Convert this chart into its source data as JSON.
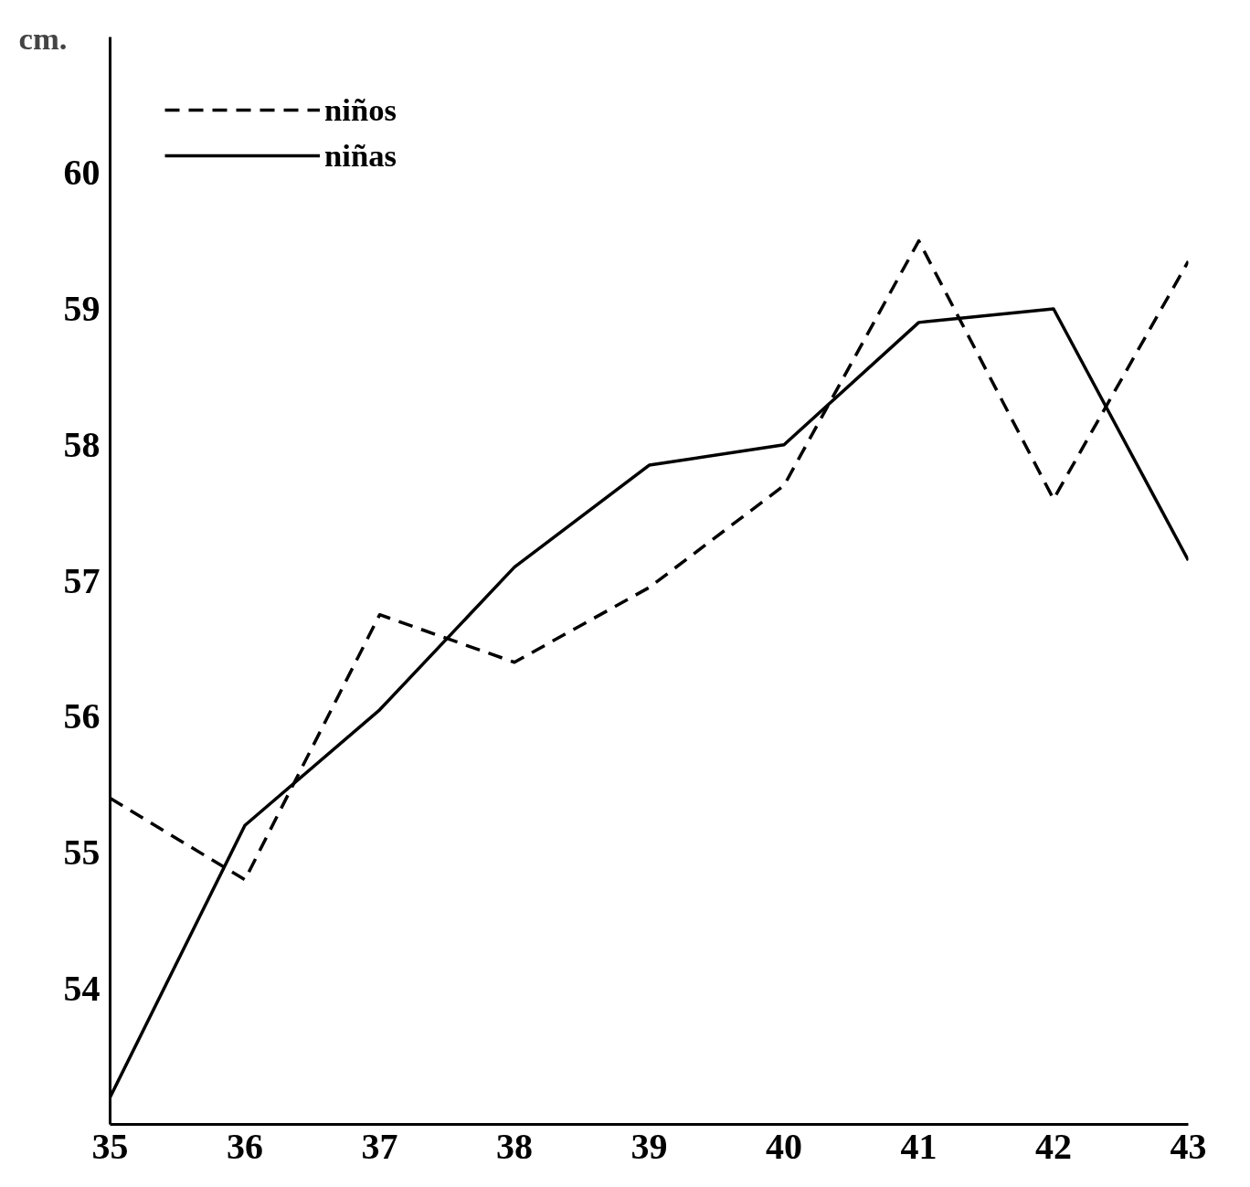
{
  "chart_data": {
    "type": "line",
    "ylabel": "cm.",
    "x": [
      35,
      36,
      37,
      38,
      39,
      40,
      41,
      42,
      43
    ],
    "series": [
      {
        "name": "niños",
        "color": "#000000",
        "line_style": "dashed",
        "values": [
          55.4,
          54.8,
          56.75,
          56.4,
          56.95,
          57.7,
          59.5,
          57.6,
          59.35
        ]
      },
      {
        "name": "niñas",
        "color": "#000000",
        "line_style": "solid",
        "values": [
          53.2,
          55.2,
          56.05,
          57.1,
          57.85,
          58.0,
          58.9,
          59.0,
          57.15
        ]
      }
    ],
    "xlim": [
      35,
      43
    ],
    "ylim": [
      53,
      61
    ],
    "xticks": [
      35,
      36,
      37,
      38,
      39,
      40,
      41,
      42,
      43
    ],
    "yticks": [
      54,
      55,
      56,
      57,
      58,
      59,
      60
    ],
    "grid": false,
    "legend": "top left",
    "marker": "none"
  }
}
